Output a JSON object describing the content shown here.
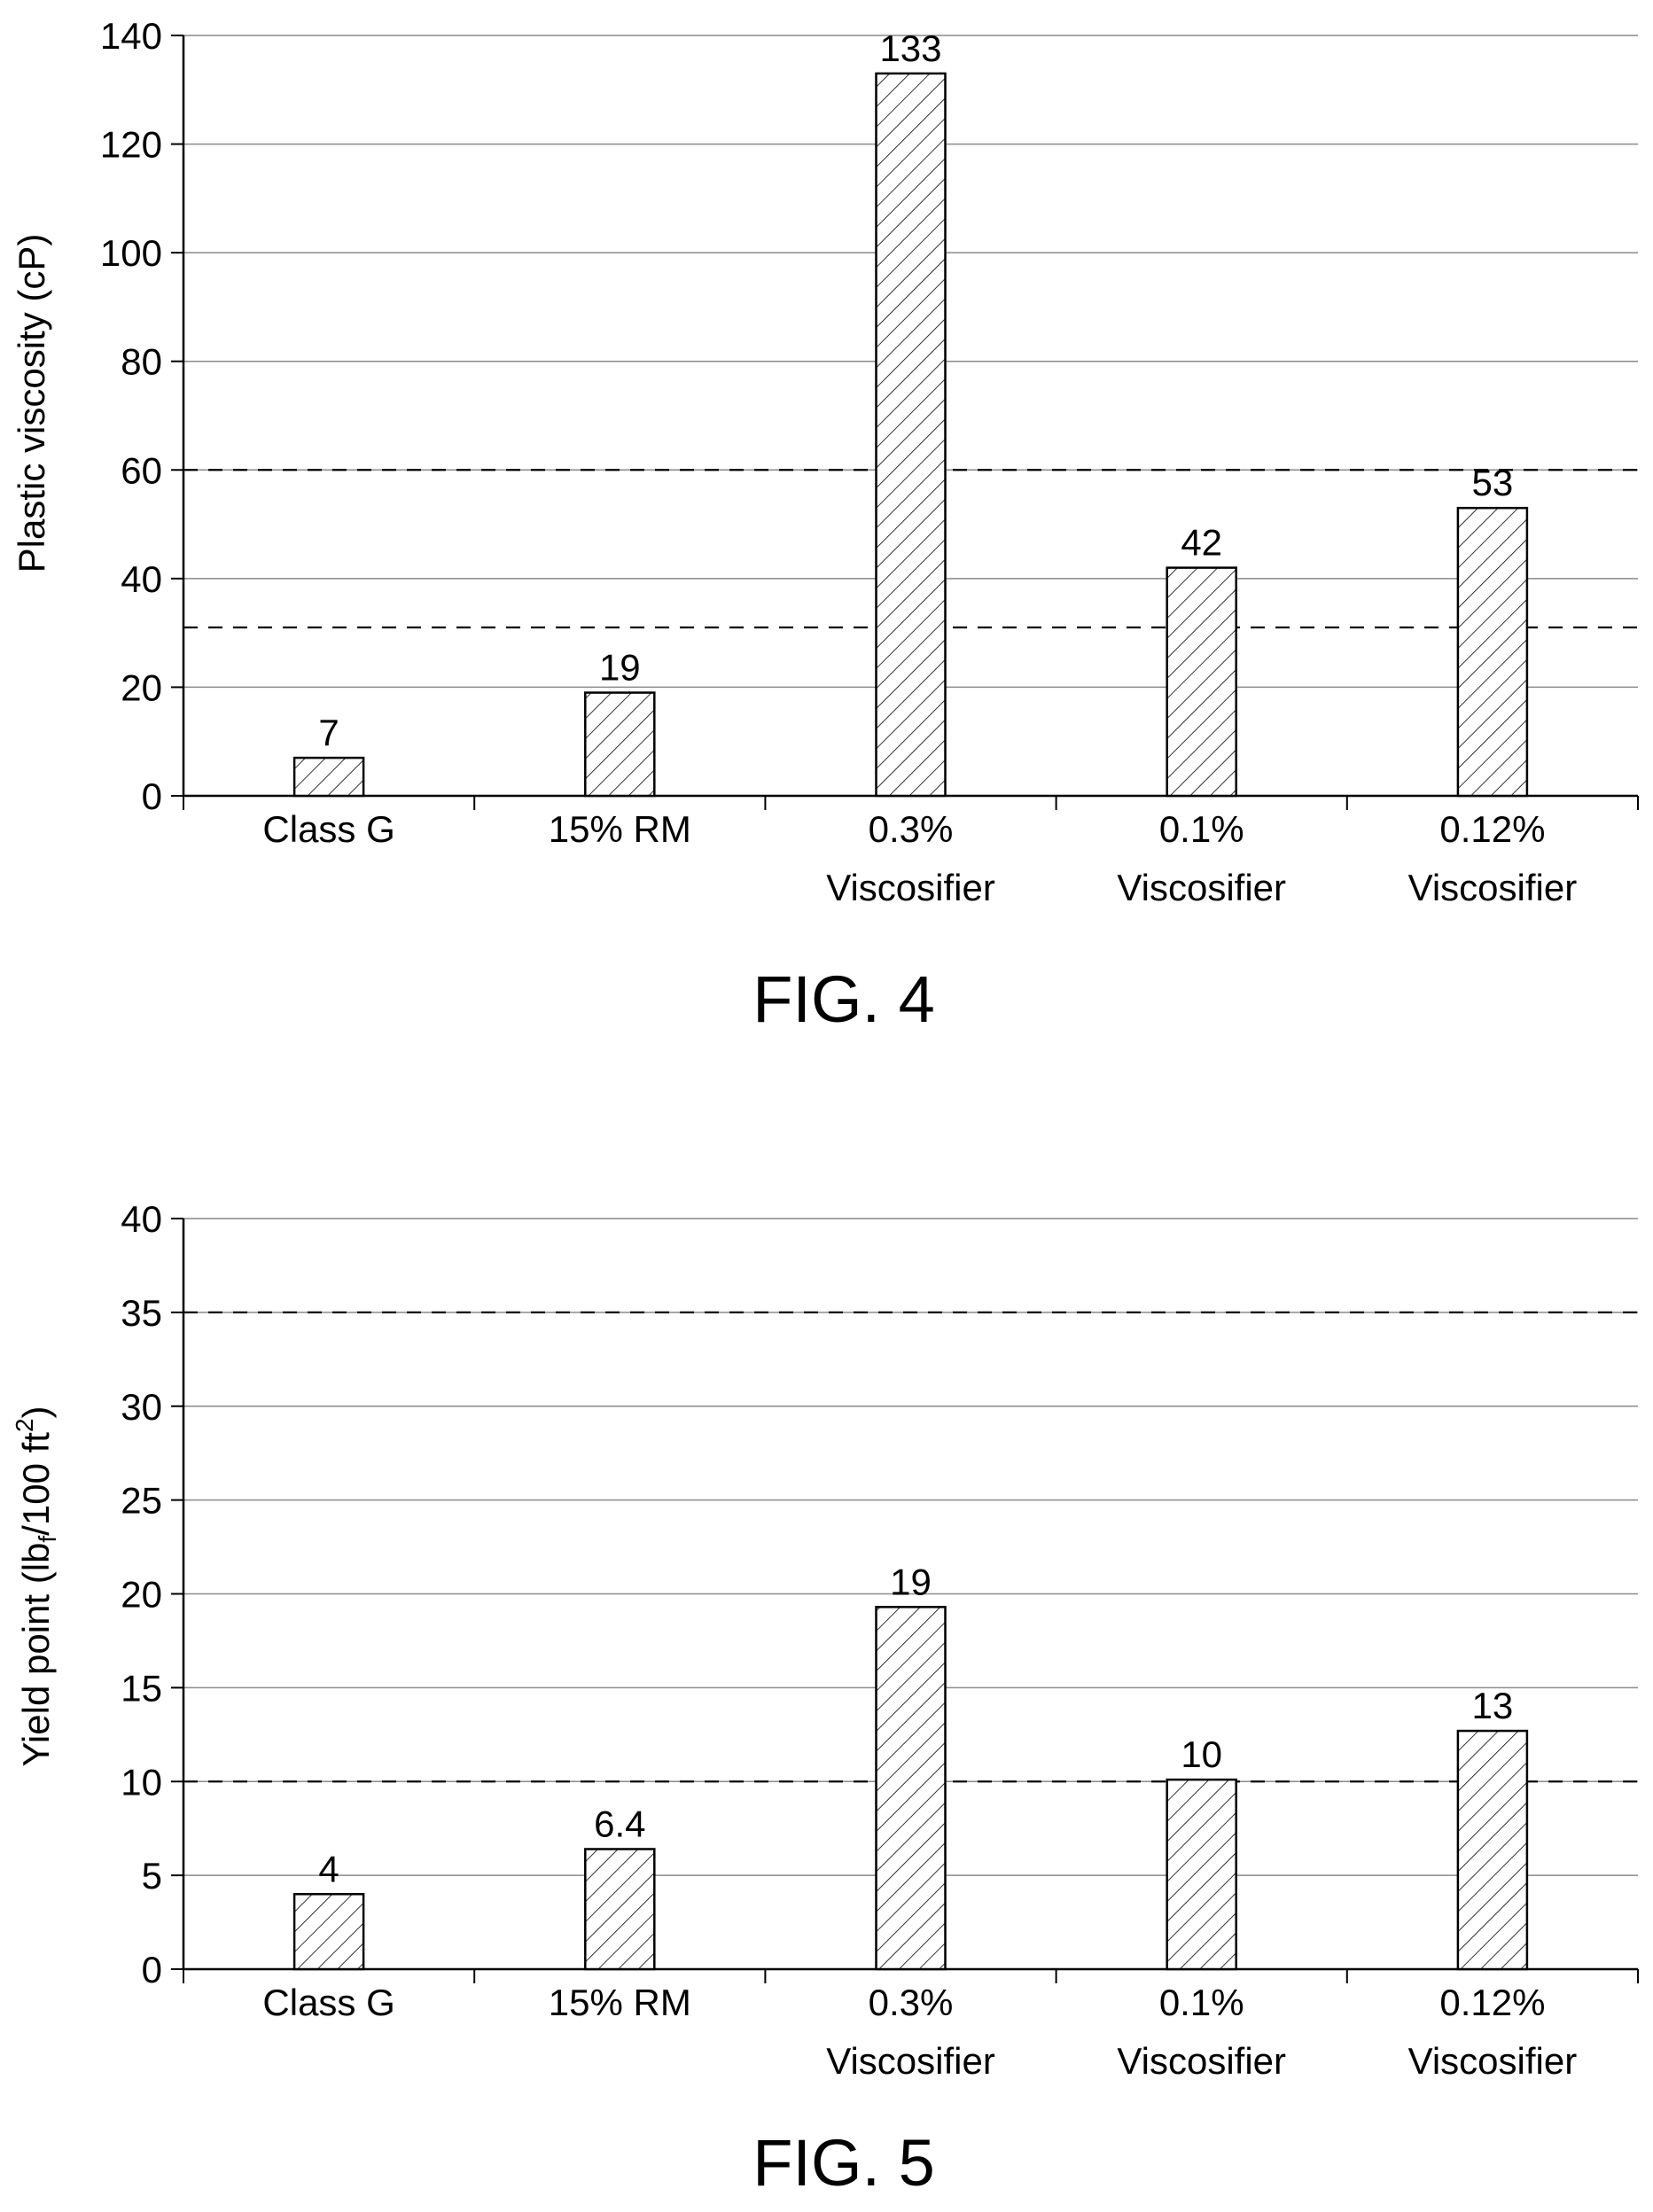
{
  "chart_data": [
    {
      "type": "bar",
      "caption": "FIG. 4",
      "ylabel": "Plastic viscosity (cP)",
      "categories": [
        [
          "Class G"
        ],
        [
          "15% RM"
        ],
        [
          "0.3%",
          "Viscosifier"
        ],
        [
          "0.1%",
          "Viscosifier"
        ],
        [
          "0.12%",
          "Viscosifier"
        ]
      ],
      "values": [
        7,
        19,
        133,
        42,
        53
      ],
      "value_labels": [
        "7",
        "19",
        "133",
        "42",
        "53"
      ],
      "ylim": [
        0,
        140
      ],
      "yticks": [
        0,
        20,
        40,
        60,
        80,
        100,
        120,
        140
      ],
      "reference_lines": [
        31,
        60
      ],
      "grid": true,
      "bar_fill": "hatched"
    },
    {
      "type": "bar",
      "caption": "FIG. 5",
      "ylabel": "Yield point (lbf/100 ft2)",
      "categories": [
        [
          "Class G"
        ],
        [
          "15% RM"
        ],
        [
          "0.3%",
          "Viscosifier"
        ],
        [
          "0.1%",
          "Viscosifier"
        ],
        [
          "0.12%",
          "Viscosifier"
        ]
      ],
      "values": [
        4,
        6.4,
        19.3,
        10.1,
        12.7
      ],
      "value_labels": [
        "4",
        "6.4",
        "19",
        "10",
        "13"
      ],
      "ylim": [
        0,
        40
      ],
      "yticks": [
        0,
        5,
        10,
        15,
        20,
        25,
        30,
        35,
        40
      ],
      "reference_lines": [
        10,
        35
      ],
      "grid": true,
      "bar_fill": "hatched"
    }
  ]
}
